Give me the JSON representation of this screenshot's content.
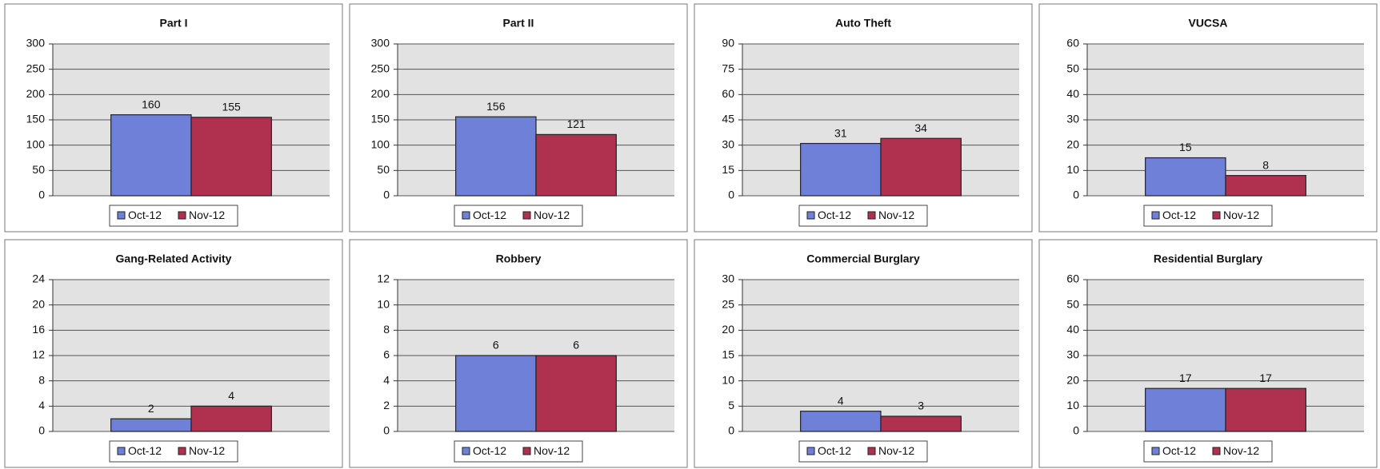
{
  "chart_data": [
    {
      "type": "bar",
      "title": "Part I",
      "categories": [
        null
      ],
      "series": [
        {
          "name": "Oct-12",
          "color": "#6f80d8",
          "values": [
            160
          ]
        },
        {
          "name": "Nov-12",
          "color": "#b0304f",
          "values": [
            155
          ]
        }
      ],
      "ylim": [
        0,
        300
      ],
      "yticks": [
        0,
        50,
        100,
        150,
        200,
        250,
        300
      ],
      "grid": true,
      "legend": "bottom"
    },
    {
      "type": "bar",
      "title": "Part II",
      "categories": [
        null
      ],
      "series": [
        {
          "name": "Oct-12",
          "color": "#6f80d8",
          "values": [
            156
          ]
        },
        {
          "name": "Nov-12",
          "color": "#b0304f",
          "values": [
            121
          ]
        }
      ],
      "ylim": [
        0,
        300
      ],
      "yticks": [
        0,
        50,
        100,
        150,
        200,
        250,
        300
      ],
      "grid": true,
      "legend": "bottom"
    },
    {
      "type": "bar",
      "title": "Auto Theft",
      "categories": [
        null
      ],
      "series": [
        {
          "name": "Oct-12",
          "color": "#6f80d8",
          "values": [
            31
          ]
        },
        {
          "name": "Nov-12",
          "color": "#b0304f",
          "values": [
            34
          ]
        }
      ],
      "ylim": [
        0,
        90
      ],
      "yticks": [
        0,
        15,
        30,
        45,
        60,
        75,
        90
      ],
      "grid": true,
      "legend": "bottom"
    },
    {
      "type": "bar",
      "title": "VUCSA",
      "categories": [
        null
      ],
      "series": [
        {
          "name": "Oct-12",
          "color": "#6f80d8",
          "values": [
            15
          ]
        },
        {
          "name": "Nov-12",
          "color": "#b0304f",
          "values": [
            8
          ]
        }
      ],
      "ylim": [
        0,
        60
      ],
      "yticks": [
        0,
        10,
        20,
        30,
        40,
        50,
        60
      ],
      "grid": true,
      "legend": "bottom"
    },
    {
      "type": "bar",
      "title": "Gang-Related Activity",
      "categories": [
        null
      ],
      "series": [
        {
          "name": "Oct-12",
          "color": "#6f80d8",
          "values": [
            2
          ]
        },
        {
          "name": "Nov-12",
          "color": "#b0304f",
          "values": [
            4
          ]
        }
      ],
      "ylim": [
        0,
        24
      ],
      "yticks": [
        0,
        4,
        8,
        12,
        16,
        20,
        24
      ],
      "grid": true,
      "legend": "bottom"
    },
    {
      "type": "bar",
      "title": "Robbery",
      "categories": [
        null
      ],
      "series": [
        {
          "name": "Oct-12",
          "color": "#6f80d8",
          "values": [
            6
          ]
        },
        {
          "name": "Nov-12",
          "color": "#b0304f",
          "values": [
            6
          ]
        }
      ],
      "ylim": [
        0,
        12
      ],
      "yticks": [
        0,
        2,
        4,
        6,
        8,
        10,
        12
      ],
      "grid": true,
      "legend": "bottom"
    },
    {
      "type": "bar",
      "title": "Commercial Burglary",
      "categories": [
        null
      ],
      "series": [
        {
          "name": "Oct-12",
          "color": "#6f80d8",
          "values": [
            4
          ]
        },
        {
          "name": "Nov-12",
          "color": "#b0304f",
          "values": [
            3
          ]
        }
      ],
      "ylim": [
        0,
        30
      ],
      "yticks": [
        0,
        5,
        10,
        15,
        20,
        25,
        30
      ],
      "grid": true,
      "legend": "bottom"
    },
    {
      "type": "bar",
      "title": "Residential Burglary",
      "categories": [
        null
      ],
      "series": [
        {
          "name": "Oct-12",
          "color": "#6f80d8",
          "values": [
            17
          ]
        },
        {
          "name": "Nov-12",
          "color": "#b0304f",
          "values": [
            17
          ]
        }
      ],
      "ylim": [
        0,
        60
      ],
      "yticks": [
        0,
        10,
        20,
        30,
        40,
        50,
        60
      ],
      "grid": true,
      "legend": "bottom"
    }
  ]
}
